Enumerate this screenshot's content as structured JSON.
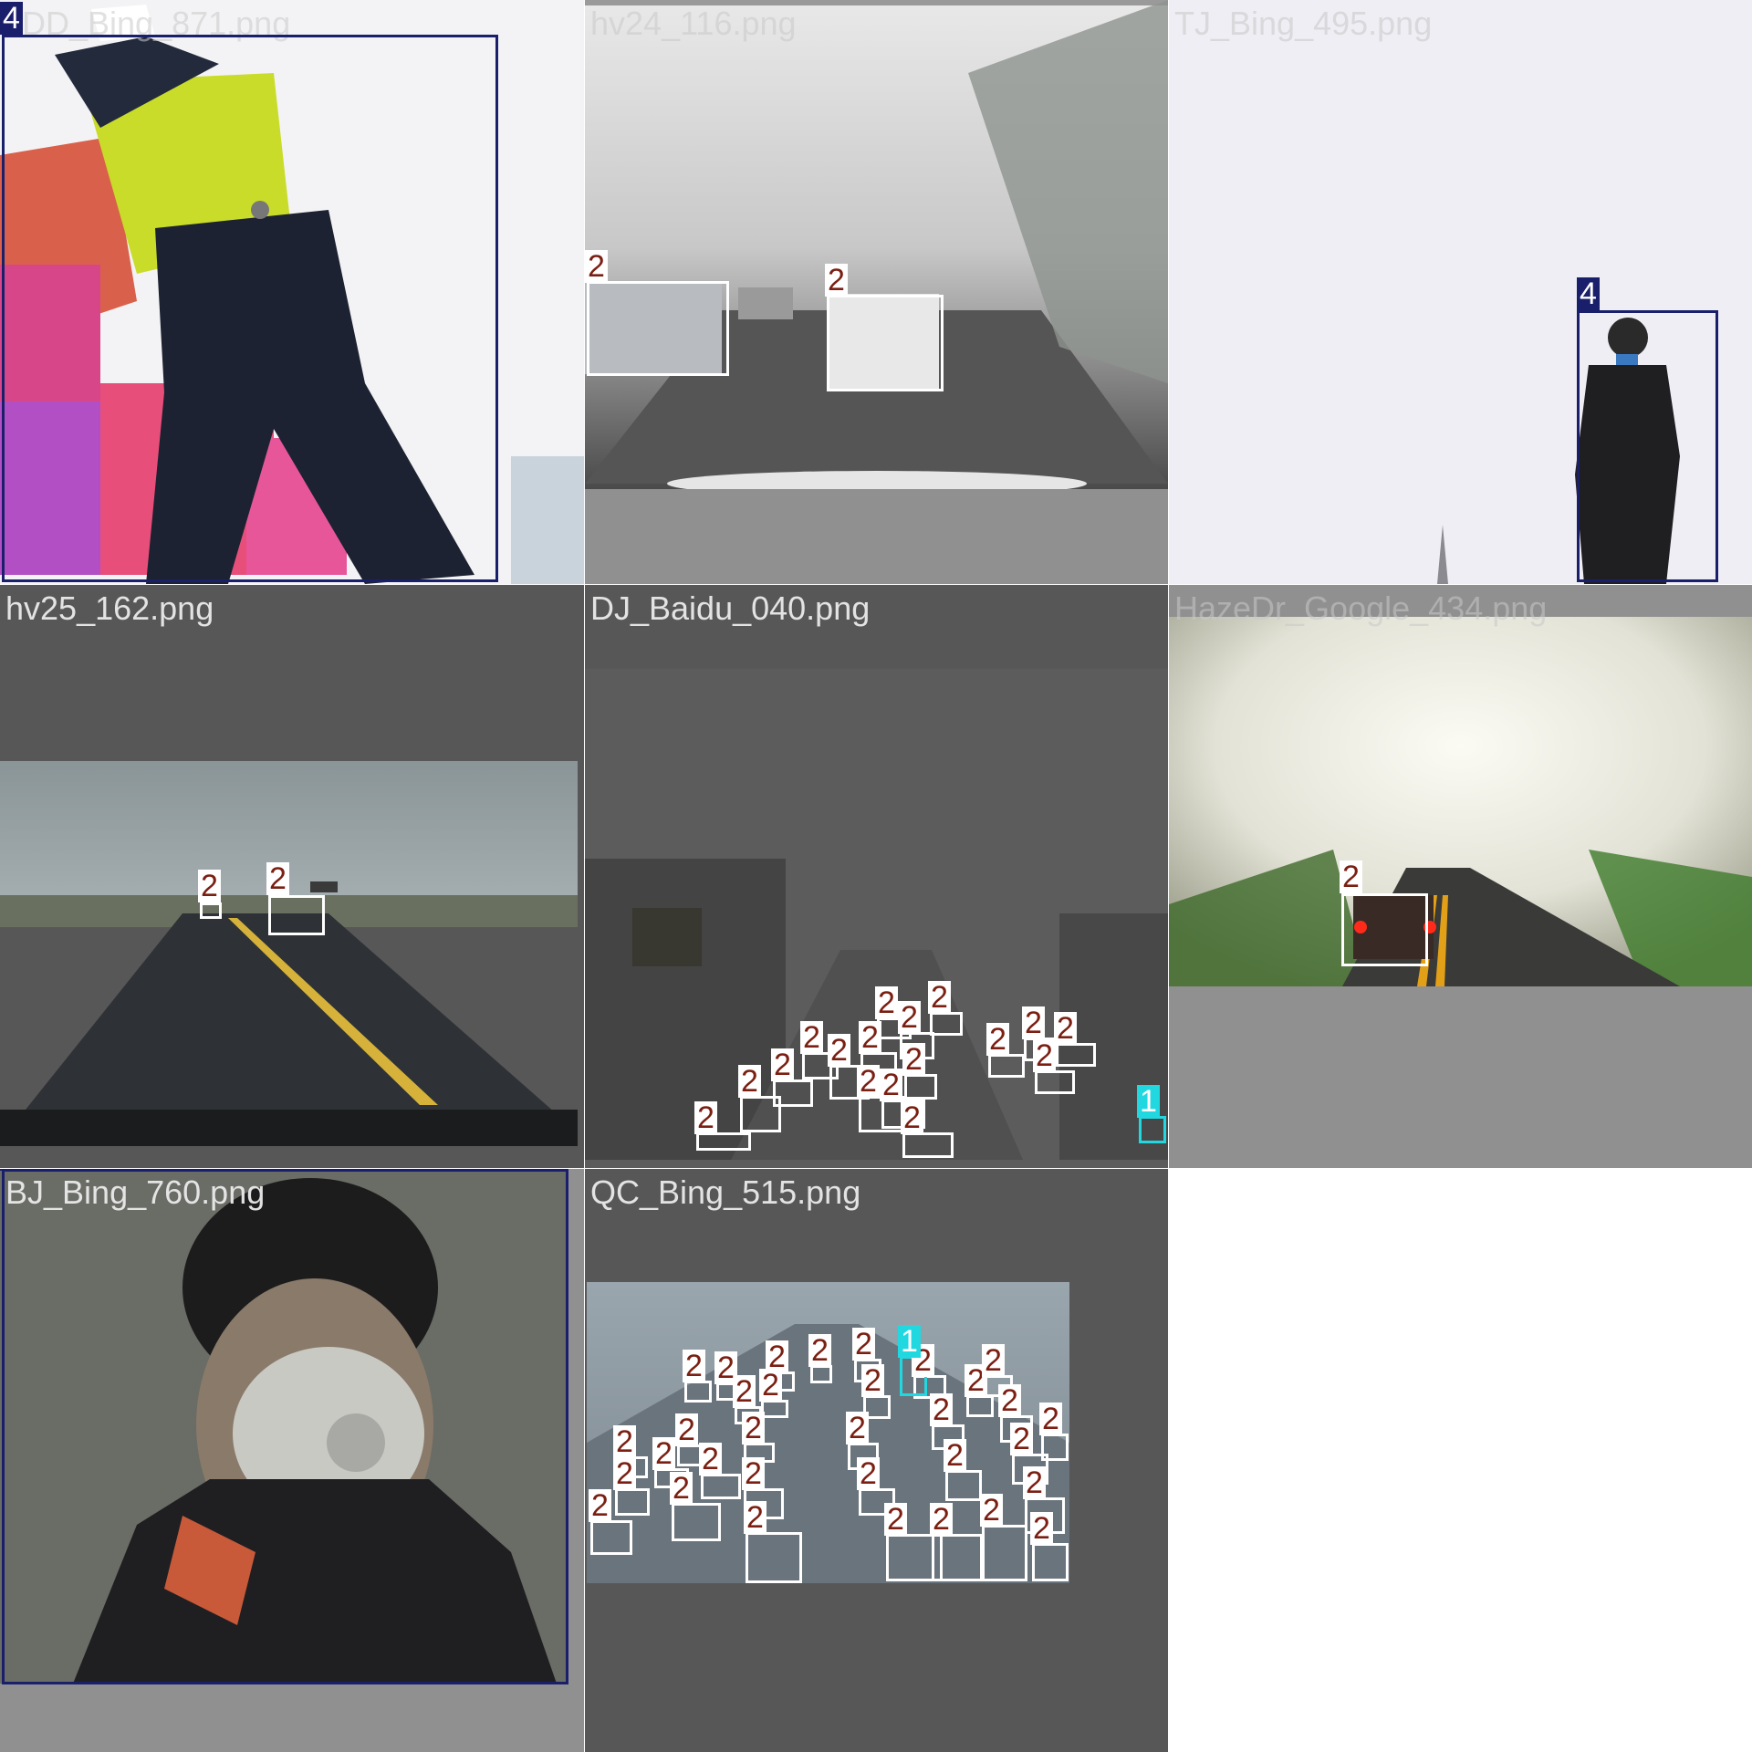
{
  "tiles": [
    {
      "filename": "DD_Bing_871.png"
    },
    {
      "filename": "hv24_116.png"
    },
    {
      "filename": "TJ_Bing_495.png"
    },
    {
      "filename": "hv25_162.png"
    },
    {
      "filename": "DJ_Baidu_040.png"
    },
    {
      "filename": "HazeDr_Google_434.png"
    },
    {
      "filename": "BJ_Bing_760.png"
    },
    {
      "filename": "QC_Bing_515.png"
    }
  ],
  "class_labels": {
    "c1": "1",
    "c2": "2",
    "c4": "4"
  },
  "class_colors": {
    "c1": "#22d8e0",
    "c2": "#ffffff",
    "c4": "#1a1f6b"
  }
}
